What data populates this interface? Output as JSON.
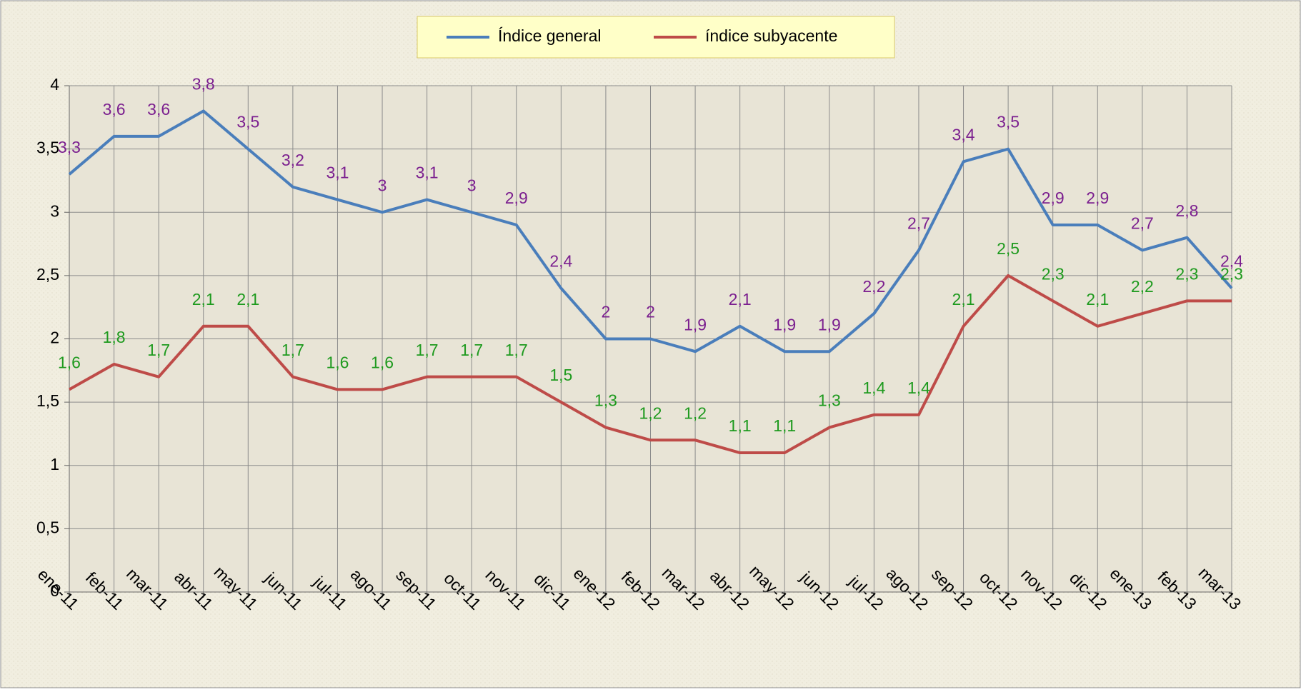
{
  "chart_data": {
    "type": "line",
    "categories": [
      "ene-11",
      "feb-11",
      "mar-11",
      "abr-11",
      "may-11",
      "jun-11",
      "jul-11",
      "ago-11",
      "sep-11",
      "oct-11",
      "nov-11",
      "dic-11",
      "ene-12",
      "feb-12",
      "mar-12",
      "abr-12",
      "may-12",
      "jun-12",
      "jul-12",
      "ago-12",
      "sep-12",
      "oct-12",
      "nov-12",
      "dic-12",
      "ene-13",
      "feb-13",
      "mar-13"
    ],
    "series": [
      {
        "name": "Índice general",
        "color": "#4a7ebb",
        "label_color": "#7b1f8f",
        "values": [
          3.3,
          3.6,
          3.6,
          3.8,
          3.5,
          3.2,
          3.1,
          3,
          3.1,
          3,
          2.9,
          2.4,
          2,
          2,
          1.9,
          2.1,
          1.9,
          1.9,
          2.2,
          2.7,
          3.4,
          3.5,
          2.9,
          2.9,
          2.7,
          2.8,
          2.4
        ],
        "value_labels": [
          "3,3",
          "3,6",
          "3,6",
          "3,8",
          "3,5",
          "3,2",
          "3,1",
          "3",
          "3,1",
          "3",
          "2,9",
          "2,4",
          "2",
          "2",
          "1,9",
          "2,1",
          "1,9",
          "1,9",
          "2,2",
          "2,7",
          "3,4",
          "3,5",
          "2,9",
          "2,9",
          "2,7",
          "2,8",
          "2,4"
        ]
      },
      {
        "name": "índice subyacente",
        "color": "#be4b48",
        "label_color": "#1e9a1e",
        "values": [
          1.6,
          1.8,
          1.7,
          2.1,
          2.1,
          1.7,
          1.6,
          1.6,
          1.7,
          1.7,
          1.7,
          1.5,
          1.3,
          1.2,
          1.2,
          1.1,
          1.1,
          1.3,
          1.4,
          1.4,
          2.1,
          2.5,
          2.3,
          2.1,
          2.2,
          2.3,
          2.3
        ],
        "value_labels": [
          "1,6",
          "1,8",
          "1,7",
          "2,1",
          "2,1",
          "1,7",
          "1,6",
          "1,6",
          "1,7",
          "1,7",
          "1,7",
          "1,5",
          "1,3",
          "1,2",
          "1,2",
          "1,1",
          "1,1",
          "1,3",
          "1,4",
          "1,4",
          "2,1",
          "2,5",
          "2,3",
          "2,1",
          "2,2",
          "2,3",
          "2,3"
        ]
      }
    ],
    "ylim": [
      0,
      4
    ],
    "yticks": [
      0,
      {
        "value": 0.5,
        "label": "0,5"
      },
      1,
      {
        "value": 1.5,
        "label": "1,5"
      },
      2,
      {
        "value": 2.5,
        "label": "2,5"
      },
      3,
      {
        "value": 3.5,
        "label": "3,5"
      },
      4
    ],
    "grid": true,
    "legend": "top"
  }
}
